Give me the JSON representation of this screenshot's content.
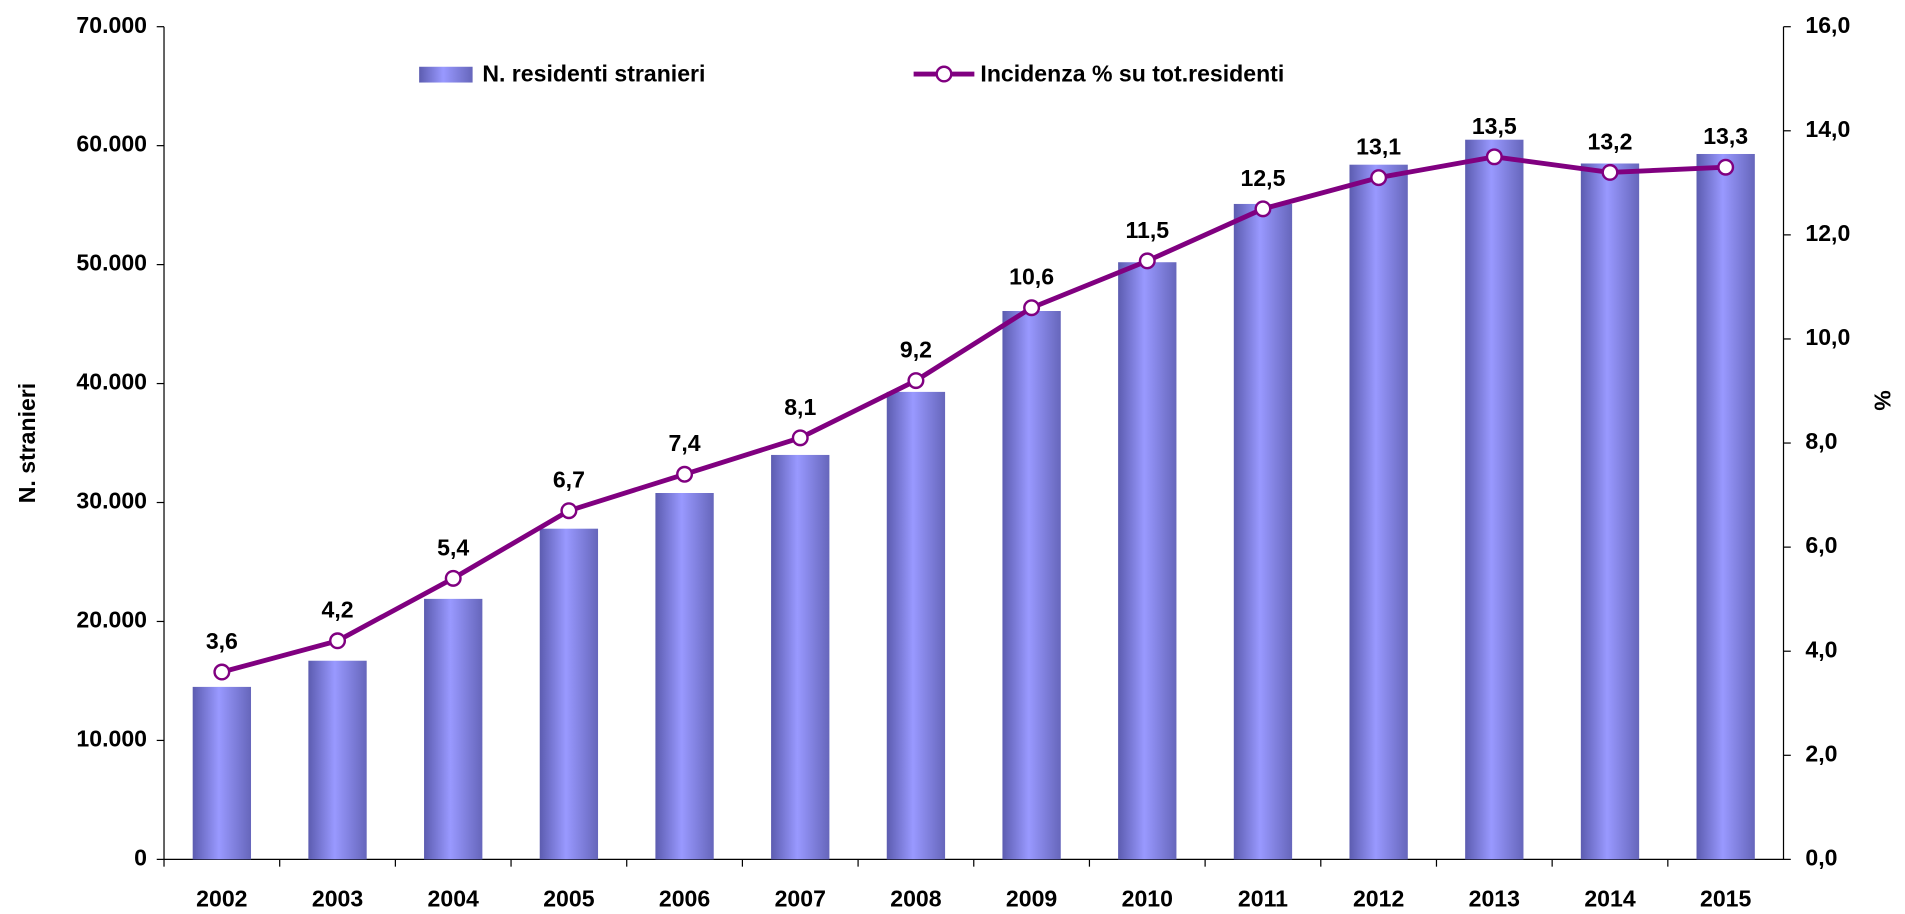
{
  "chart_data": {
    "type": "bar-line",
    "y_label": "N. stranieri",
    "y2_label": "%",
    "categories": [
      "2002",
      "2003",
      "2004",
      "2005",
      "2006",
      "2007",
      "2008",
      "2009",
      "2010",
      "2011",
      "2012",
      "2013",
      "2014",
      "2015"
    ],
    "series": [
      {
        "name": "N. residenti stranieri",
        "type": "bar",
        "color": "#9999ff",
        "axis": "y",
        "values": [
          14500,
          16700,
          21900,
          27800,
          30800,
          34000,
          39300,
          46100,
          50200,
          55100,
          58400,
          60500,
          58500,
          59300
        ]
      },
      {
        "name": "Incidenza % su tot.residenti",
        "type": "line",
        "color": "#800080",
        "axis": "y2",
        "values": [
          3.6,
          4.2,
          5.4,
          6.7,
          7.4,
          8.1,
          9.2,
          10.6,
          11.5,
          12.5,
          13.1,
          13.5,
          13.2,
          13.3
        ],
        "value_labels": [
          "3,6",
          "4,2",
          "5,4",
          "6,7",
          "7,4",
          "8,1",
          "9,2",
          "10,6",
          "11,5",
          "12,5",
          "13,1",
          "13,5",
          "13,2",
          "13,3"
        ]
      }
    ],
    "ylim": [
      0,
      70000
    ],
    "yticks": [
      0,
      {
        "value": 10000,
        "label": "10.000"
      },
      {
        "value": 20000,
        "label": "20.000"
      },
      {
        "value": 30000,
        "label": "30.000"
      },
      {
        "value": 40000,
        "label": "40.000"
      },
      {
        "value": 50000,
        "label": "50.000"
      },
      {
        "value": 60000,
        "label": "60.000"
      },
      {
        "value": 70000,
        "label": "70.000"
      }
    ],
    "y2lim": [
      0,
      16
    ],
    "y2ticks": [
      {
        "value": 0,
        "label": "0,0"
      },
      {
        "value": 2,
        "label": "2,0"
      },
      {
        "value": 4,
        "label": "4,0"
      },
      {
        "value": 6,
        "label": "6,0"
      },
      {
        "value": 8,
        "label": "8,0"
      },
      {
        "value": 10,
        "label": "10,0"
      },
      {
        "value": 12,
        "label": "12,0"
      },
      {
        "value": 14,
        "label": "14,0"
      },
      {
        "value": 16,
        "label": "16,0"
      }
    ],
    "legend": "top"
  }
}
